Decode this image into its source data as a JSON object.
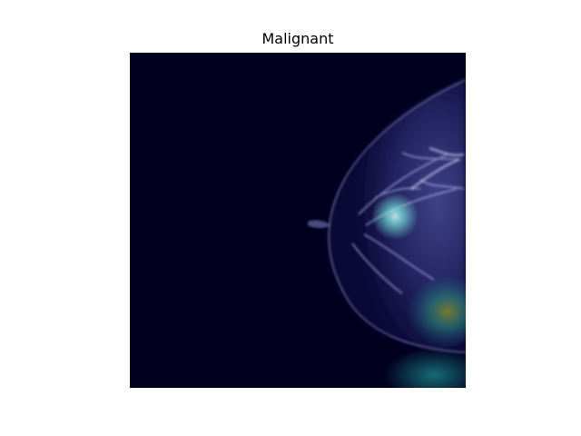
{
  "figure": {
    "title": "Malignant"
  },
  "image": {
    "description_icon": "mammogram-heatmap-overlay",
    "background_color": "#02001f",
    "tissue_color": "#5b64a8",
    "highlight_color": "#7ff0e6",
    "heat_color_low": "#1f8a8a",
    "heat_color_high": "#8a8a2a"
  }
}
